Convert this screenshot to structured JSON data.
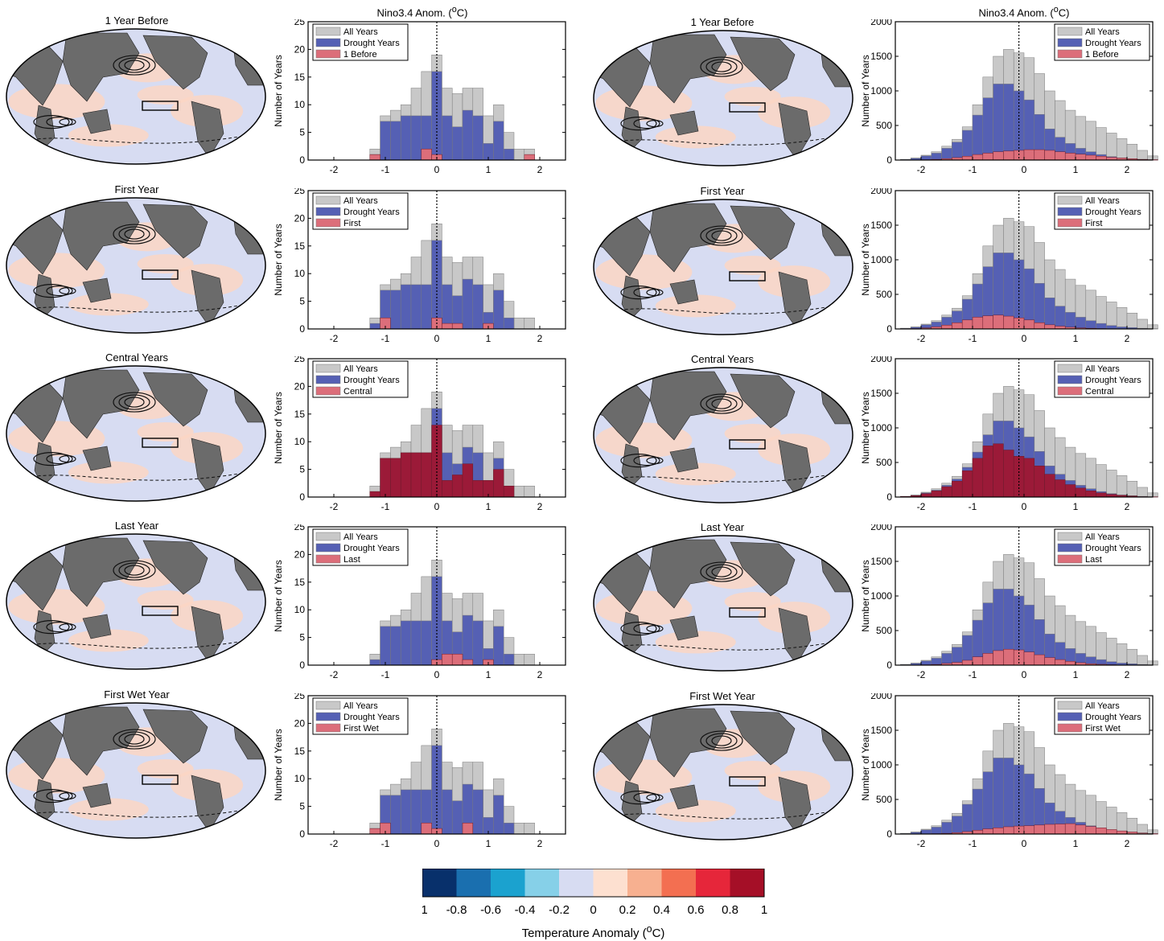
{
  "chart_data": [
    {
      "type": "bar",
      "xlabel_top": "Nino3.4 Anom. (",
      "ylabel": "Number of Years",
      "ylim": [
        0,
        25
      ],
      "yticks": [
        0,
        5,
        10,
        15,
        20,
        25
      ],
      "xticks": [
        -2,
        -1,
        0,
        1,
        2
      ],
      "bin_centers": [
        -1.4,
        -1.2,
        -1.0,
        -0.8,
        -0.6,
        -0.4,
        -0.2,
        0.0,
        0.2,
        0.4,
        0.6,
        0.8,
        1.0,
        1.2,
        1.4,
        1.6,
        1.8,
        2.0
      ],
      "all_years": [
        0,
        2,
        8,
        9,
        10,
        13,
        16,
        19,
        13,
        12,
        13,
        13,
        8,
        10,
        5,
        2,
        2,
        0
      ],
      "drought_years": [
        0,
        1,
        7,
        7,
        8,
        8,
        8,
        16,
        8,
        6,
        9,
        8,
        3,
        7,
        2,
        0,
        0,
        0
      ],
      "zero_line": 0,
      "panels": [
        {
          "legend": [
            "All Years",
            "Drought Years",
            "1 Before"
          ],
          "subset": [
            0,
            1,
            0,
            0,
            0,
            0,
            2,
            1,
            0,
            0,
            0,
            0,
            0,
            0,
            0,
            0,
            1,
            0
          ]
        },
        {
          "legend": [
            "All Years",
            "Drought Years",
            "First"
          ],
          "subset": [
            0,
            0,
            2,
            0,
            0,
            0,
            0,
            2,
            1,
            1,
            0,
            0,
            1,
            0,
            0,
            0,
            0,
            0
          ]
        },
        {
          "legend": [
            "All Years",
            "Drought Years",
            "Central"
          ],
          "subset": [
            0,
            1,
            7,
            7,
            8,
            8,
            8,
            13,
            3,
            4,
            6,
            3,
            3,
            5,
            2,
            0,
            0,
            0
          ]
        },
        {
          "legend": [
            "All Years",
            "Drought Years",
            "Last"
          ],
          "subset": [
            0,
            0,
            0,
            0,
            0,
            0,
            0,
            1,
            2,
            2,
            1,
            0,
            1,
            0,
            0,
            0,
            0,
            0
          ]
        },
        {
          "legend": [
            "All Years",
            "Drought Years",
            "First Wet"
          ],
          "subset": [
            0,
            1,
            2,
            0,
            0,
            0,
            2,
            1,
            0,
            0,
            2,
            0,
            0,
            0,
            0,
            0,
            0,
            0
          ]
        }
      ]
    },
    {
      "type": "bar",
      "xlabel_top": "Nino3.4 Anom. (",
      "ylabel": "Number of Years",
      "ylim": [
        0,
        2000
      ],
      "yticks": [
        0,
        500,
        1000,
        1500,
        2000
      ],
      "xticks": [
        -2,
        -1,
        0,
        1,
        2
      ],
      "bin_centers": [
        -2.3,
        -2.1,
        -1.9,
        -1.7,
        -1.5,
        -1.3,
        -1.1,
        -0.9,
        -0.7,
        -0.5,
        -0.3,
        -0.1,
        0.1,
        0.3,
        0.5,
        0.7,
        0.9,
        1.1,
        1.3,
        1.5,
        1.7,
        1.9,
        2.1,
        2.3,
        2.5
      ],
      "all_years": [
        10,
        30,
        70,
        120,
        200,
        300,
        480,
        800,
        1200,
        1500,
        1600,
        1550,
        1480,
        1250,
        1000,
        860,
        720,
        630,
        560,
        470,
        390,
        310,
        230,
        140,
        60
      ],
      "drought_years": [
        10,
        25,
        60,
        100,
        170,
        260,
        430,
        650,
        900,
        1100,
        1100,
        1000,
        870,
        660,
        450,
        330,
        240,
        170,
        120,
        80,
        50,
        30,
        20,
        10,
        5
      ],
      "zero_line": -0.1,
      "panels": [
        {
          "legend": [
            "All Years",
            "Drought Years",
            "1 Before"
          ],
          "subset": [
            0,
            2,
            5,
            10,
            20,
            35,
            55,
            80,
            100,
            120,
            130,
            140,
            150,
            150,
            140,
            120,
            100,
            85,
            70,
            55,
            40,
            30,
            20,
            10,
            5
          ]
        },
        {
          "legend": [
            "All Years",
            "Drought Years",
            "First"
          ],
          "subset": [
            2,
            5,
            15,
            30,
            55,
            90,
            130,
            170,
            190,
            200,
            185,
            160,
            130,
            90,
            60,
            40,
            25,
            15,
            10,
            5,
            3,
            2,
            0,
            0,
            0
          ]
        },
        {
          "legend": [
            "All Years",
            "Drought Years",
            "Central"
          ],
          "subset": [
            8,
            20,
            50,
            90,
            150,
            230,
            380,
            560,
            740,
            770,
            680,
            590,
            560,
            450,
            330,
            250,
            180,
            130,
            90,
            60,
            40,
            25,
            15,
            5,
            3
          ]
        },
        {
          "legend": [
            "All Years",
            "Drought Years",
            "Last"
          ],
          "subset": [
            0,
            2,
            5,
            10,
            25,
            40,
            70,
            120,
            170,
            210,
            230,
            220,
            190,
            150,
            110,
            80,
            55,
            35,
            20,
            12,
            6,
            3,
            0,
            0,
            0
          ]
        },
        {
          "legend": [
            "All Years",
            "Drought Years",
            "First Wet"
          ],
          "subset": [
            0,
            1,
            3,
            5,
            10,
            20,
            35,
            55,
            75,
            90,
            105,
            115,
            120,
            130,
            140,
            145,
            150,
            130,
            110,
            90,
            65,
            45,
            30,
            15,
            5
          ]
        }
      ]
    }
  ],
  "maps": {
    "left": [
      "1 Year Before",
      "First Year",
      "Central Years",
      "Last Year",
      "First Wet Year"
    ],
    "right": [
      "1 Year Before",
      "First Year",
      "Central Years",
      "Last Year",
      "First Wet Year"
    ]
  },
  "hist_titles": [
    "Nino3.4 Anom. (",
    "Nino3.4 Anom. ("
  ],
  "colorbar": {
    "ticks": [
      "-1",
      "-0.8",
      "-0.6",
      "-0.4",
      "-0.2",
      "0",
      "0.2",
      "0.4",
      "0.6",
      "0.8",
      "1"
    ],
    "colors": [
      "#08306b",
      "#1a6faf",
      "#1ba2cf",
      "#86d0e8",
      "#d7dcf2",
      "#fde0d0",
      "#f7b090",
      "#f36f51",
      "#e6263a",
      "#a50f27"
    ],
    "label": "Temperature Anomaly ("
  },
  "colors": {
    "all_years": "#c8c8c8",
    "drought_years": "#5560b4",
    "subset": "#dc6e7a",
    "subset_dark": "#9b1a38",
    "land": "#6b6b6b",
    "ocean": "#d7dcf2"
  }
}
